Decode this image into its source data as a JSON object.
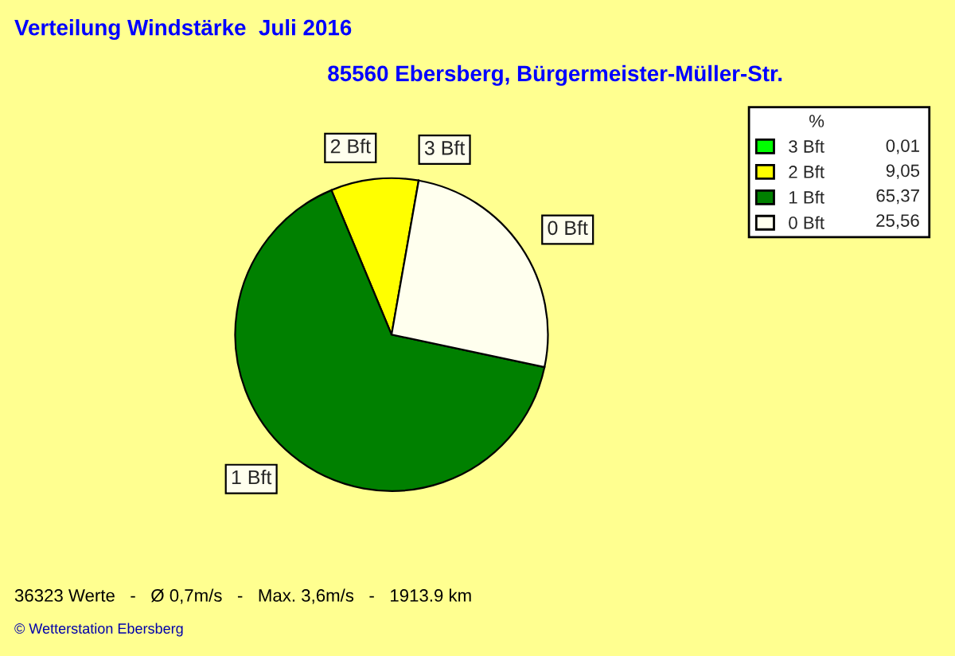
{
  "chart_data": {
    "type": "pie",
    "title": "Verteilung Windstärke  Juli 2016",
    "subtitle": "85560 Ebersberg, Bürgermeister-Müller-Str.",
    "categories": [
      "3 Bft",
      "2 Bft",
      "1 Bft",
      "0 Bft"
    ],
    "values": [
      0.01,
      9.05,
      65.37,
      25.56
    ],
    "value_labels": [
      "0,01",
      "9,05",
      "65,37",
      "25,56"
    ],
    "colors": [
      "#00ff00",
      "#ffff00",
      "#008000",
      "#ffffee"
    ],
    "legend_title": "%",
    "legend": "top right",
    "annotations": [
      "36323 Werte   -   Ø 0,7m/s   -   Max. 3,6m/s   -   1913.9 km",
      "© Wetterstation Ebersberg"
    ]
  }
}
